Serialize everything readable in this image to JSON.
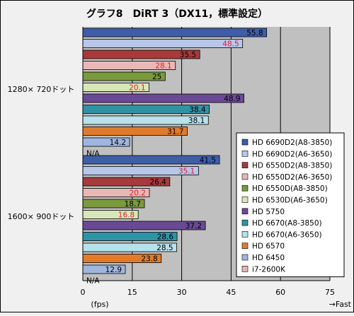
{
  "chart_data": {
    "type": "bar",
    "orientation": "horizontal",
    "title": "グラフ8　DiRT 3（DX11，標準設定）",
    "xlabel": "(fps)",
    "x_direction_label": "→Fast",
    "xlim": [
      0,
      75
    ],
    "xticks": [
      0,
      15,
      30,
      45,
      60,
      75
    ],
    "grid": true,
    "legend_position": "right",
    "groups": [
      "1280× 720ドット",
      "1600× 900ドット"
    ],
    "series": [
      {
        "name": "HD 6690D2(A8-3850)",
        "color": "#3f5ea8",
        "label_color": "#000000",
        "values": [
          55.8,
          41.5
        ]
      },
      {
        "name": "HD 6690D2(A6-3650)",
        "color": "#b7c7ea",
        "label_color": "#e0202e",
        "values": [
          48.5,
          35.1
        ]
      },
      {
        "name": "HD 6550D2(A8-3850)",
        "color": "#a83a3c",
        "label_color": "#000000",
        "values": [
          35.5,
          26.4
        ]
      },
      {
        "name": "HD 6550D2(A6-3650)",
        "color": "#eab7b7",
        "label_color": "#e0202e",
        "values": [
          28.1,
          20.2
        ]
      },
      {
        "name": "HD 6550D(A8-3850)",
        "color": "#7a9a3c",
        "label_color": "#000000",
        "values": [
          25.0,
          18.7
        ]
      },
      {
        "name": "HD 6530D(A6-3650)",
        "color": "#d9e6b8",
        "label_color": "#e0202e",
        "values": [
          20.1,
          16.8
        ]
      },
      {
        "name": "HD 5750",
        "color": "#6a4a96",
        "label_color": "#000000",
        "values": [
          48.9,
          37.2
        ]
      },
      {
        "name": "HD 6670(A8-3850)",
        "color": "#2f93a6",
        "label_color": "#000000",
        "values": [
          38.4,
          28.6
        ]
      },
      {
        "name": "HD 6670(A6-3650)",
        "color": "#b7e1ec",
        "label_color": "#000000",
        "values": [
          38.1,
          28.5
        ]
      },
      {
        "name": "HD 6570",
        "color": "#e07b2c",
        "label_color": "#000000",
        "values": [
          31.7,
          23.8
        ]
      },
      {
        "name": "HD 6450",
        "color": "#9fb6e0",
        "label_color": "#000000",
        "values": [
          14.2,
          12.9
        ]
      },
      {
        "name": "i7-2600K",
        "color": "#e8b4b4",
        "label_color": "#000000",
        "values": [
          "N/A",
          "N/A"
        ]
      }
    ]
  }
}
